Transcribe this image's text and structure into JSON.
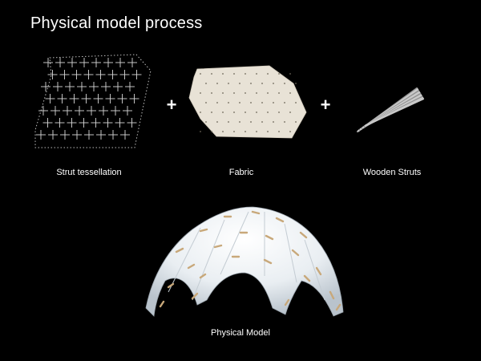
{
  "title": "Physical model process",
  "operators": {
    "plus_1": "+",
    "plus_2": "+"
  },
  "captions": {
    "strut_tessellation": "Strut tessellation",
    "fabric": "Fabric",
    "wooden_struts": "Wooden Struts",
    "physical_model": "Physical Model"
  },
  "colors": {
    "background": "#000000",
    "text": "#ffffff",
    "fabric": "#e8e2d6",
    "wood": "#c8a87a",
    "tessellation_line": "#d8d8d8"
  }
}
